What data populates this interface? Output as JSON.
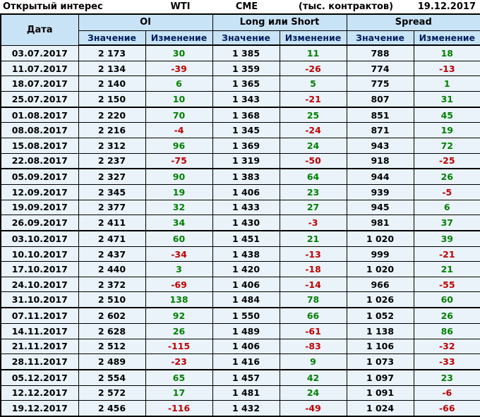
{
  "title_bar": {
    "title": "Открытый интерес",
    "instrument": "WTI",
    "exchange": "CME",
    "units": "(тыс. контрактов)",
    "report_date": "19.12.2017"
  },
  "table": {
    "date_header": "Дата",
    "groups": [
      {
        "label": "OI"
      },
      {
        "label": "Long или Short"
      },
      {
        "label": "Spread"
      }
    ],
    "subheaders": {
      "value": "Значение",
      "change": "Изменение"
    },
    "colors": {
      "positive": "#008000",
      "negative": "#c00000",
      "header_bg": "#c9e3f6",
      "row_bg": "#eaf3fa",
      "header_text": "#002060",
      "border": "#000000"
    },
    "month_start_rows": [
      4,
      8,
      12,
      17,
      21
    ],
    "rows": [
      {
        "date": "03.07.2017",
        "oi": "2 173",
        "oi_chg": "30",
        "ls": "1 385",
        "ls_chg": "11",
        "spread": "788",
        "spread_chg": "18"
      },
      {
        "date": "11.07.2017",
        "oi": "2 134",
        "oi_chg": "-39",
        "ls": "1 359",
        "ls_chg": "-26",
        "spread": "774",
        "spread_chg": "-13"
      },
      {
        "date": "18.07.2017",
        "oi": "2 140",
        "oi_chg": "6",
        "ls": "1 365",
        "ls_chg": "5",
        "spread": "775",
        "spread_chg": "1"
      },
      {
        "date": "25.07.2017",
        "oi": "2 150",
        "oi_chg": "10",
        "ls": "1 343",
        "ls_chg": "-21",
        "spread": "807",
        "spread_chg": "31"
      },
      {
        "date": "01.08.2017",
        "oi": "2 220",
        "oi_chg": "70",
        "ls": "1 368",
        "ls_chg": "25",
        "spread": "851",
        "spread_chg": "45"
      },
      {
        "date": "08.08.2017",
        "oi": "2 216",
        "oi_chg": "-4",
        "ls": "1 345",
        "ls_chg": "-24",
        "spread": "871",
        "spread_chg": "19"
      },
      {
        "date": "15.08.2017",
        "oi": "2 312",
        "oi_chg": "96",
        "ls": "1 369",
        "ls_chg": "24",
        "spread": "943",
        "spread_chg": "72"
      },
      {
        "date": "22.08.2017",
        "oi": "2 237",
        "oi_chg": "-75",
        "ls": "1 319",
        "ls_chg": "-50",
        "spread": "918",
        "spread_chg": "-25"
      },
      {
        "date": "05.09.2017",
        "oi": "2 327",
        "oi_chg": "90",
        "ls": "1 383",
        "ls_chg": "64",
        "spread": "944",
        "spread_chg": "26"
      },
      {
        "date": "12.09.2017",
        "oi": "2 345",
        "oi_chg": "19",
        "ls": "1 406",
        "ls_chg": "23",
        "spread": "939",
        "spread_chg": "-5"
      },
      {
        "date": "19.09.2017",
        "oi": "2 377",
        "oi_chg": "32",
        "ls": "1 433",
        "ls_chg": "27",
        "spread": "945",
        "spread_chg": "6"
      },
      {
        "date": "26.09.2017",
        "oi": "2 411",
        "oi_chg": "34",
        "ls": "1 430",
        "ls_chg": "-3",
        "spread": "981",
        "spread_chg": "37"
      },
      {
        "date": "03.10.2017",
        "oi": "2 471",
        "oi_chg": "60",
        "ls": "1 451",
        "ls_chg": "21",
        "spread": "1 020",
        "spread_chg": "39"
      },
      {
        "date": "10.10.2017",
        "oi": "2 437",
        "oi_chg": "-34",
        "ls": "1 438",
        "ls_chg": "-13",
        "spread": "999",
        "spread_chg": "-21"
      },
      {
        "date": "17.10.2017",
        "oi": "2 440",
        "oi_chg": "3",
        "ls": "1 420",
        "ls_chg": "-18",
        "spread": "1 020",
        "spread_chg": "21"
      },
      {
        "date": "24.10.2017",
        "oi": "2 372",
        "oi_chg": "-69",
        "ls": "1 406",
        "ls_chg": "-14",
        "spread": "966",
        "spread_chg": "-55"
      },
      {
        "date": "31.10.2017",
        "oi": "2 510",
        "oi_chg": "138",
        "ls": "1 484",
        "ls_chg": "78",
        "spread": "1 026",
        "spread_chg": "60"
      },
      {
        "date": "07.11.2017",
        "oi": "2 602",
        "oi_chg": "92",
        "ls": "1 550",
        "ls_chg": "66",
        "spread": "1 052",
        "spread_chg": "26"
      },
      {
        "date": "14.11.2017",
        "oi": "2 628",
        "oi_chg": "26",
        "ls": "1 489",
        "ls_chg": "-61",
        "spread": "1 138",
        "spread_chg": "86"
      },
      {
        "date": "21.11.2017",
        "oi": "2 512",
        "oi_chg": "-115",
        "ls": "1 406",
        "ls_chg": "-83",
        "spread": "1 106",
        "spread_chg": "-32"
      },
      {
        "date": "28.11.2017",
        "oi": "2 489",
        "oi_chg": "-23",
        "ls": "1 416",
        "ls_chg": "9",
        "spread": "1 073",
        "spread_chg": "-33"
      },
      {
        "date": "05.12.2017",
        "oi": "2 554",
        "oi_chg": "65",
        "ls": "1 457",
        "ls_chg": "42",
        "spread": "1 097",
        "spread_chg": "23"
      },
      {
        "date": "12.12.2017",
        "oi": "2 572",
        "oi_chg": "17",
        "ls": "1 481",
        "ls_chg": "24",
        "spread": "1 091",
        "spread_chg": "-6"
      },
      {
        "date": "19.12.2017",
        "oi": "2 456",
        "oi_chg": "-116",
        "ls": "1 432",
        "ls_chg": "-49",
        "spread": "1 024",
        "spread_chg": "-66"
      }
    ]
  }
}
